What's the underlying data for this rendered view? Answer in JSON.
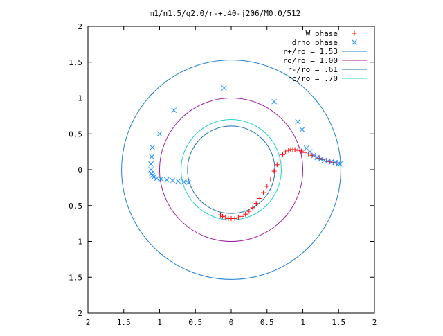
{
  "chart_data": {
    "type": "scatter",
    "title": "m1/n1.5/q2.0/r-+.40-j206/M0.0/512",
    "xlim": [
      -2,
      2
    ],
    "ylim": [
      -2,
      2
    ],
    "x_tick_labels": [
      "2",
      "1.5",
      "1",
      "0.5",
      "0",
      "0.5",
      "1",
      "1.5",
      "2"
    ],
    "x_tick_values": [
      -2,
      -1.5,
      -1,
      -0.5,
      0,
      0.5,
      1,
      1.5,
      2
    ],
    "y_tick_labels": [
      "2",
      "1.5",
      "1",
      "0.5",
      "0",
      "0.5",
      "1",
      "1.5",
      "2"
    ],
    "y_tick_values": [
      2,
      1.5,
      1,
      0.5,
      0,
      -0.5,
      -1,
      -1.5,
      -2
    ],
    "grid": false,
    "legend_position": "top-right",
    "series": [
      {
        "name": "W phase",
        "kind": "points",
        "marker": "plus",
        "color": "#ff0000",
        "x": [
          -0.15,
          -0.12,
          -0.08,
          -0.04,
          0.0,
          0.05,
          0.1,
          0.15,
          0.2,
          0.25,
          0.3,
          0.35,
          0.4,
          0.45,
          0.5,
          0.55,
          0.6,
          0.64,
          0.68,
          0.72,
          0.76,
          0.8,
          0.83,
          0.86,
          0.89,
          0.93,
          0.98,
          1.03,
          1.08,
          1.13,
          1.18,
          1.23,
          1.28,
          1.33,
          1.38,
          1.43,
          1.47
        ],
        "y": [
          -0.63,
          -0.65,
          -0.67,
          -0.68,
          -0.68,
          -0.68,
          -0.67,
          -0.65,
          -0.62,
          -0.58,
          -0.53,
          -0.47,
          -0.4,
          -0.32,
          -0.23,
          -0.13,
          -0.02,
          0.07,
          0.15,
          0.21,
          0.25,
          0.27,
          0.28,
          0.28,
          0.28,
          0.27,
          0.26,
          0.24,
          0.22,
          0.2,
          0.18,
          0.16,
          0.14,
          0.12,
          0.11,
          0.1,
          0.09
        ]
      },
      {
        "name": "drho phase",
        "kind": "points",
        "marker": "cross",
        "color": "#1e90ff",
        "x": [
          -0.1,
          0.6,
          -0.8,
          0.93,
          -1.0,
          0.99,
          -1.1,
          -1.11,
          -1.12,
          -1.12,
          -1.11,
          -1.1,
          -1.08,
          -1.04,
          -0.98,
          -0.9,
          -0.82,
          -0.74,
          -0.66,
          -0.6,
          1.05,
          1.1,
          1.15,
          1.2,
          1.25,
          1.3,
          1.35,
          1.4,
          1.45,
          1.5,
          1.52
        ],
        "y": [
          1.14,
          0.95,
          0.83,
          0.67,
          0.5,
          0.56,
          0.31,
          0.18,
          0.08,
          0.0,
          -0.05,
          -0.08,
          -0.1,
          -0.12,
          -0.13,
          -0.14,
          -0.15,
          -0.16,
          -0.17,
          -0.18,
          0.3,
          0.25,
          0.2,
          0.17,
          0.15,
          0.13,
          0.12,
          0.11,
          0.1,
          0.09,
          0.08
        ]
      },
      {
        "name": "r+/ro = 1.53",
        "kind": "circle",
        "radius": 1.53,
        "color": "#1e7fcf"
      },
      {
        "name": "ro/ro = 1.00",
        "kind": "circle",
        "radius": 1.0,
        "color": "#a020a0"
      },
      {
        "name": "r-/ro = .61",
        "kind": "circle",
        "radius": 0.61,
        "color": "#1e6fb0"
      },
      {
        "name": "rc/ro = .70",
        "kind": "circle",
        "radius": 0.7,
        "color": "#20d0d0"
      }
    ]
  }
}
